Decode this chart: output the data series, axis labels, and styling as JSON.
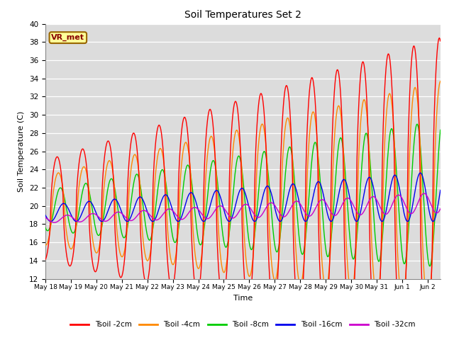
{
  "title": "Soil Temperatures Set 2",
  "xlabel": "Time",
  "ylabel": "Soil Temperature (C)",
  "ylim": [
    12,
    40
  ],
  "yticks": [
    12,
    14,
    16,
    18,
    20,
    22,
    24,
    26,
    28,
    30,
    32,
    34,
    36,
    38,
    40
  ],
  "bg_color": "#dcdcdc",
  "annotation_text": "VR_met",
  "annotation_bg": "#ffff99",
  "annotation_border": "#996600",
  "annotation_fg": "#880000",
  "series_colors": [
    "#ff0000",
    "#ff8800",
    "#00cc00",
    "#0000ee",
    "#cc00cc"
  ],
  "series_labels": [
    "Tsoil -2cm",
    "Tsoil -4cm",
    "Tsoil -8cm",
    "Tsoil -16cm",
    "Tsoil -32cm"
  ],
  "n_points": 720,
  "total_days": 15.5
}
